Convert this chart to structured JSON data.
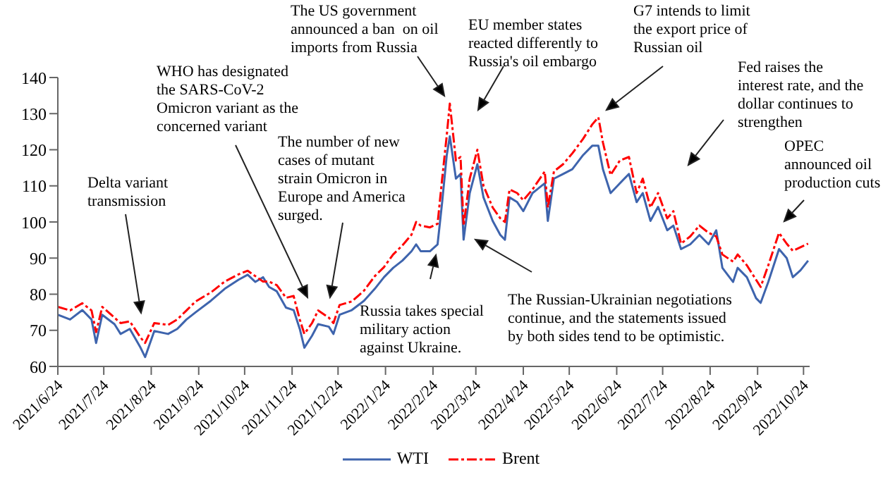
{
  "chart_data": {
    "type": "line",
    "x": [
      "2021-06-24",
      "2021-07-02",
      "2021-07-10",
      "2021-07-16",
      "2021-07-19",
      "2021-07-23",
      "2021-07-31",
      "2021-08-04",
      "2021-08-10",
      "2021-08-17",
      "2021-08-20",
      "2021-08-26",
      "2021-09-04",
      "2021-09-10",
      "2021-09-16",
      "2021-09-22",
      "2021-10-02",
      "2021-10-11",
      "2021-10-20",
      "2021-10-26",
      "2021-10-31",
      "2021-11-05",
      "2021-11-09",
      "2021-11-14",
      "2021-11-20",
      "2021-11-25",
      "2021-11-29",
      "2021-12-02",
      "2021-12-07",
      "2021-12-11",
      "2021-12-18",
      "2021-12-21",
      "2021-12-25",
      "2022-01-02",
      "2022-01-10",
      "2022-01-17",
      "2022-01-23",
      "2022-01-29",
      "2022-02-04",
      "2022-02-10",
      "2022-02-13",
      "2022-02-16",
      "2022-02-22",
      "2022-02-27",
      "2022-03-02",
      "2022-03-05",
      "2022-03-07",
      "2022-03-11",
      "2022-03-14",
      "2022-03-16",
      "2022-03-20",
      "2022-03-25",
      "2022-03-29",
      "2022-04-04",
      "2022-04-09",
      "2022-04-12",
      "2022-04-15",
      "2022-04-20",
      "2022-04-24",
      "2022-04-30",
      "2022-05-08",
      "2022-05-10",
      "2022-05-14",
      "2022-05-20",
      "2022-05-26",
      "2022-06-02",
      "2022-06-08",
      "2022-06-12",
      "2022-06-15",
      "2022-06-20",
      "2022-06-26",
      "2022-07-02",
      "2022-07-07",
      "2022-07-11",
      "2022-07-16",
      "2022-07-21",
      "2022-07-27",
      "2022-07-31",
      "2022-08-05",
      "2022-08-11",
      "2022-08-17",
      "2022-08-23",
      "2022-08-28",
      "2022-09-01",
      "2022-09-08",
      "2022-09-11",
      "2022-09-17",
      "2022-09-23",
      "2022-09-26",
      "2022-10-01",
      "2022-10-08",
      "2022-10-13",
      "2022-10-17",
      "2022-10-22",
      "2022-10-27"
    ],
    "series": [
      {
        "name": "WTI",
        "color": "#3e64ad",
        "line_style": "solid",
        "values": [
          74.3,
          73,
          75.6,
          73,
          66.5,
          74.3,
          71.7,
          69,
          70.4,
          65.2,
          62.6,
          69.8,
          69,
          70.4,
          73,
          75,
          78.2,
          81.5,
          84,
          85.4,
          83.4,
          84.7,
          82,
          80.8,
          76.3,
          75.6,
          70.4,
          65.2,
          68.5,
          71.7,
          71,
          69,
          74.3,
          75.6,
          78.2,
          81.5,
          84.7,
          87.3,
          89.3,
          91.9,
          93.8,
          91.9,
          91.9,
          93.8,
          105.5,
          118.5,
          123.7,
          112,
          113.3,
          95.1,
          108,
          116,
          106.8,
          100.3,
          96.4,
          95.1,
          106.8,
          105.5,
          103,
          108,
          110.7,
          100.3,
          112,
          113.3,
          114.6,
          118.5,
          121.1,
          121.1,
          114.6,
          108,
          110.7,
          113.3,
          105.5,
          108,
          100.3,
          104.2,
          97.7,
          99,
          92.5,
          93.8,
          96.4,
          93.8,
          97.7,
          87.3,
          83.4,
          87.3,
          84.7,
          78.9,
          77.6,
          83.4,
          92.5,
          90,
          84.7,
          86.6,
          89.3
        ]
      },
      {
        "name": "Brent",
        "color": "#ff0000",
        "line_style": "dashdot",
        "values": [
          76.5,
          75.5,
          77.5,
          75.5,
          69.5,
          76.5,
          73.5,
          72,
          72.5,
          68,
          66.5,
          72,
          71.5,
          73,
          75.5,
          78,
          80.5,
          83.5,
          85.5,
          86.5,
          85,
          83.5,
          83.5,
          82.5,
          79,
          79.5,
          73,
          69,
          72,
          75.5,
          73.5,
          72,
          77,
          78,
          81,
          85,
          87.5,
          91,
          93.5,
          96.5,
          100,
          99,
          98.5,
          99.5,
          112,
          124,
          132.8,
          117,
          118,
          99,
          112,
          120,
          110,
          104,
          101,
          100,
          109,
          108,
          106,
          109,
          114,
          104,
          114,
          116,
          119,
          123,
          127,
          129,
          122,
          113,
          117,
          118,
          108,
          112,
          104,
          108,
          101,
          103,
          94,
          96,
          99,
          97,
          96,
          91,
          89,
          91,
          88,
          84,
          82,
          88,
          97,
          94,
          92,
          93,
          94
        ]
      }
    ],
    "xlim": [
      "2021-06-24",
      "2022-10-28"
    ],
    "xticks": [
      {
        "value": "2021-06-24",
        "label": "2021/6/24"
      },
      {
        "value": "2021-07-24",
        "label": "2021/7/24"
      },
      {
        "value": "2021-08-24",
        "label": "2021/8/24"
      },
      {
        "value": "2021-09-24",
        "label": "2021/9/24"
      },
      {
        "value": "2021-10-24",
        "label": "2021/10/24"
      },
      {
        "value": "2021-11-24",
        "label": "2021/11/24"
      },
      {
        "value": "2021-12-24",
        "label": "2021/12/24"
      },
      {
        "value": "2022-01-24",
        "label": "2022/1/24"
      },
      {
        "value": "2022-02-24",
        "label": "2022/2/24"
      },
      {
        "value": "2022-03-24",
        "label": "2022/3/24"
      },
      {
        "value": "2022-04-24",
        "label": "2022/4/24"
      },
      {
        "value": "2022-05-24",
        "label": "2022/5/24"
      },
      {
        "value": "2022-06-24",
        "label": "2022/6/24"
      },
      {
        "value": "2022-07-24",
        "label": "2022/7/24"
      },
      {
        "value": "2022-08-24",
        "label": "2022/8/24"
      },
      {
        "value": "2022-09-24",
        "label": "2022/9/24"
      },
      {
        "value": "2022-10-24",
        "label": "2022/10/24"
      }
    ],
    "ylim": [
      60,
      140
    ],
    "yticks": [
      60,
      70,
      80,
      90,
      100,
      110,
      120,
      130,
      140
    ],
    "legend": "bottom",
    "annotations": [
      "Delta variant\ntransmission",
      "WHO has designated\nthe SARS-CoV-2\nOmicron variant as the\nconcerned variant",
      "The number of new\ncases of mutant\nstrain Omicron in\nEurope and America\nsurged.",
      "The US government\nannounced a ban  on oil\nimports from Russia",
      "Russia takes special\nmilitary action\nagainst Ukraine.",
      "EU member states\nreacted differently to\nRussia's oil embargo",
      "The Russian-Ukrainian negotiations\ncontinue, and the statements issued\nby both sides tend to be optimistic.",
      "G7 intends to limit\nthe export price of\nRussian oil",
      "Fed raises the\ninterest rate, and the\ndollar continues to\nstrengthen",
      "OPEC\nannounced oil\nproduction cuts"
    ]
  }
}
